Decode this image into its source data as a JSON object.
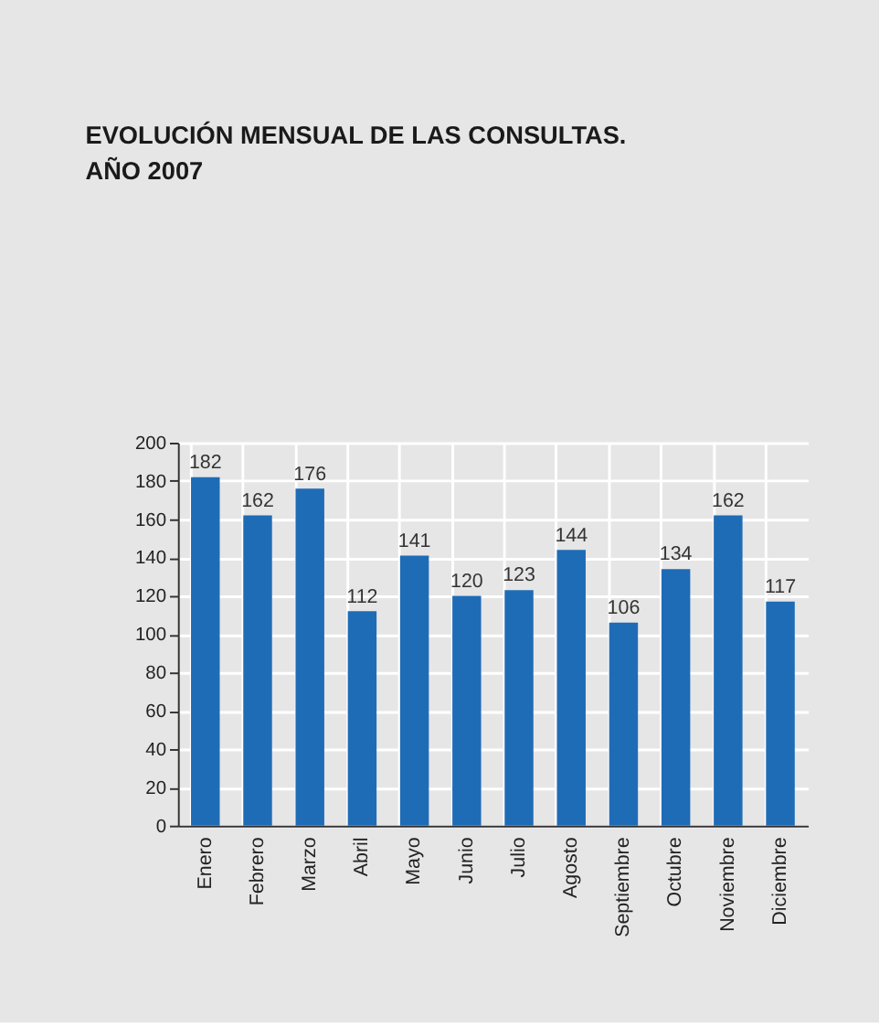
{
  "chart_data": {
    "type": "bar",
    "title": "EVOLUCIÓN MENSUAL DE LAS CONSULTAS.\nAÑO 2007",
    "categories": [
      "Enero",
      "Febrero",
      "Marzo",
      "Abril",
      "Mayo",
      "Junio",
      "Julio",
      "Agosto",
      "Septiembre",
      "Octubre",
      "Noviembre",
      "Diciembre"
    ],
    "values": [
      182,
      162,
      176,
      112,
      141,
      120,
      123,
      144,
      106,
      134,
      162,
      117
    ],
    "color": "#1f6cb6",
    "ylim": [
      0,
      200
    ],
    "yticks": [
      0,
      20,
      40,
      60,
      80,
      100,
      120,
      140,
      160,
      180,
      200
    ],
    "grid": true,
    "data_labels": true
  }
}
